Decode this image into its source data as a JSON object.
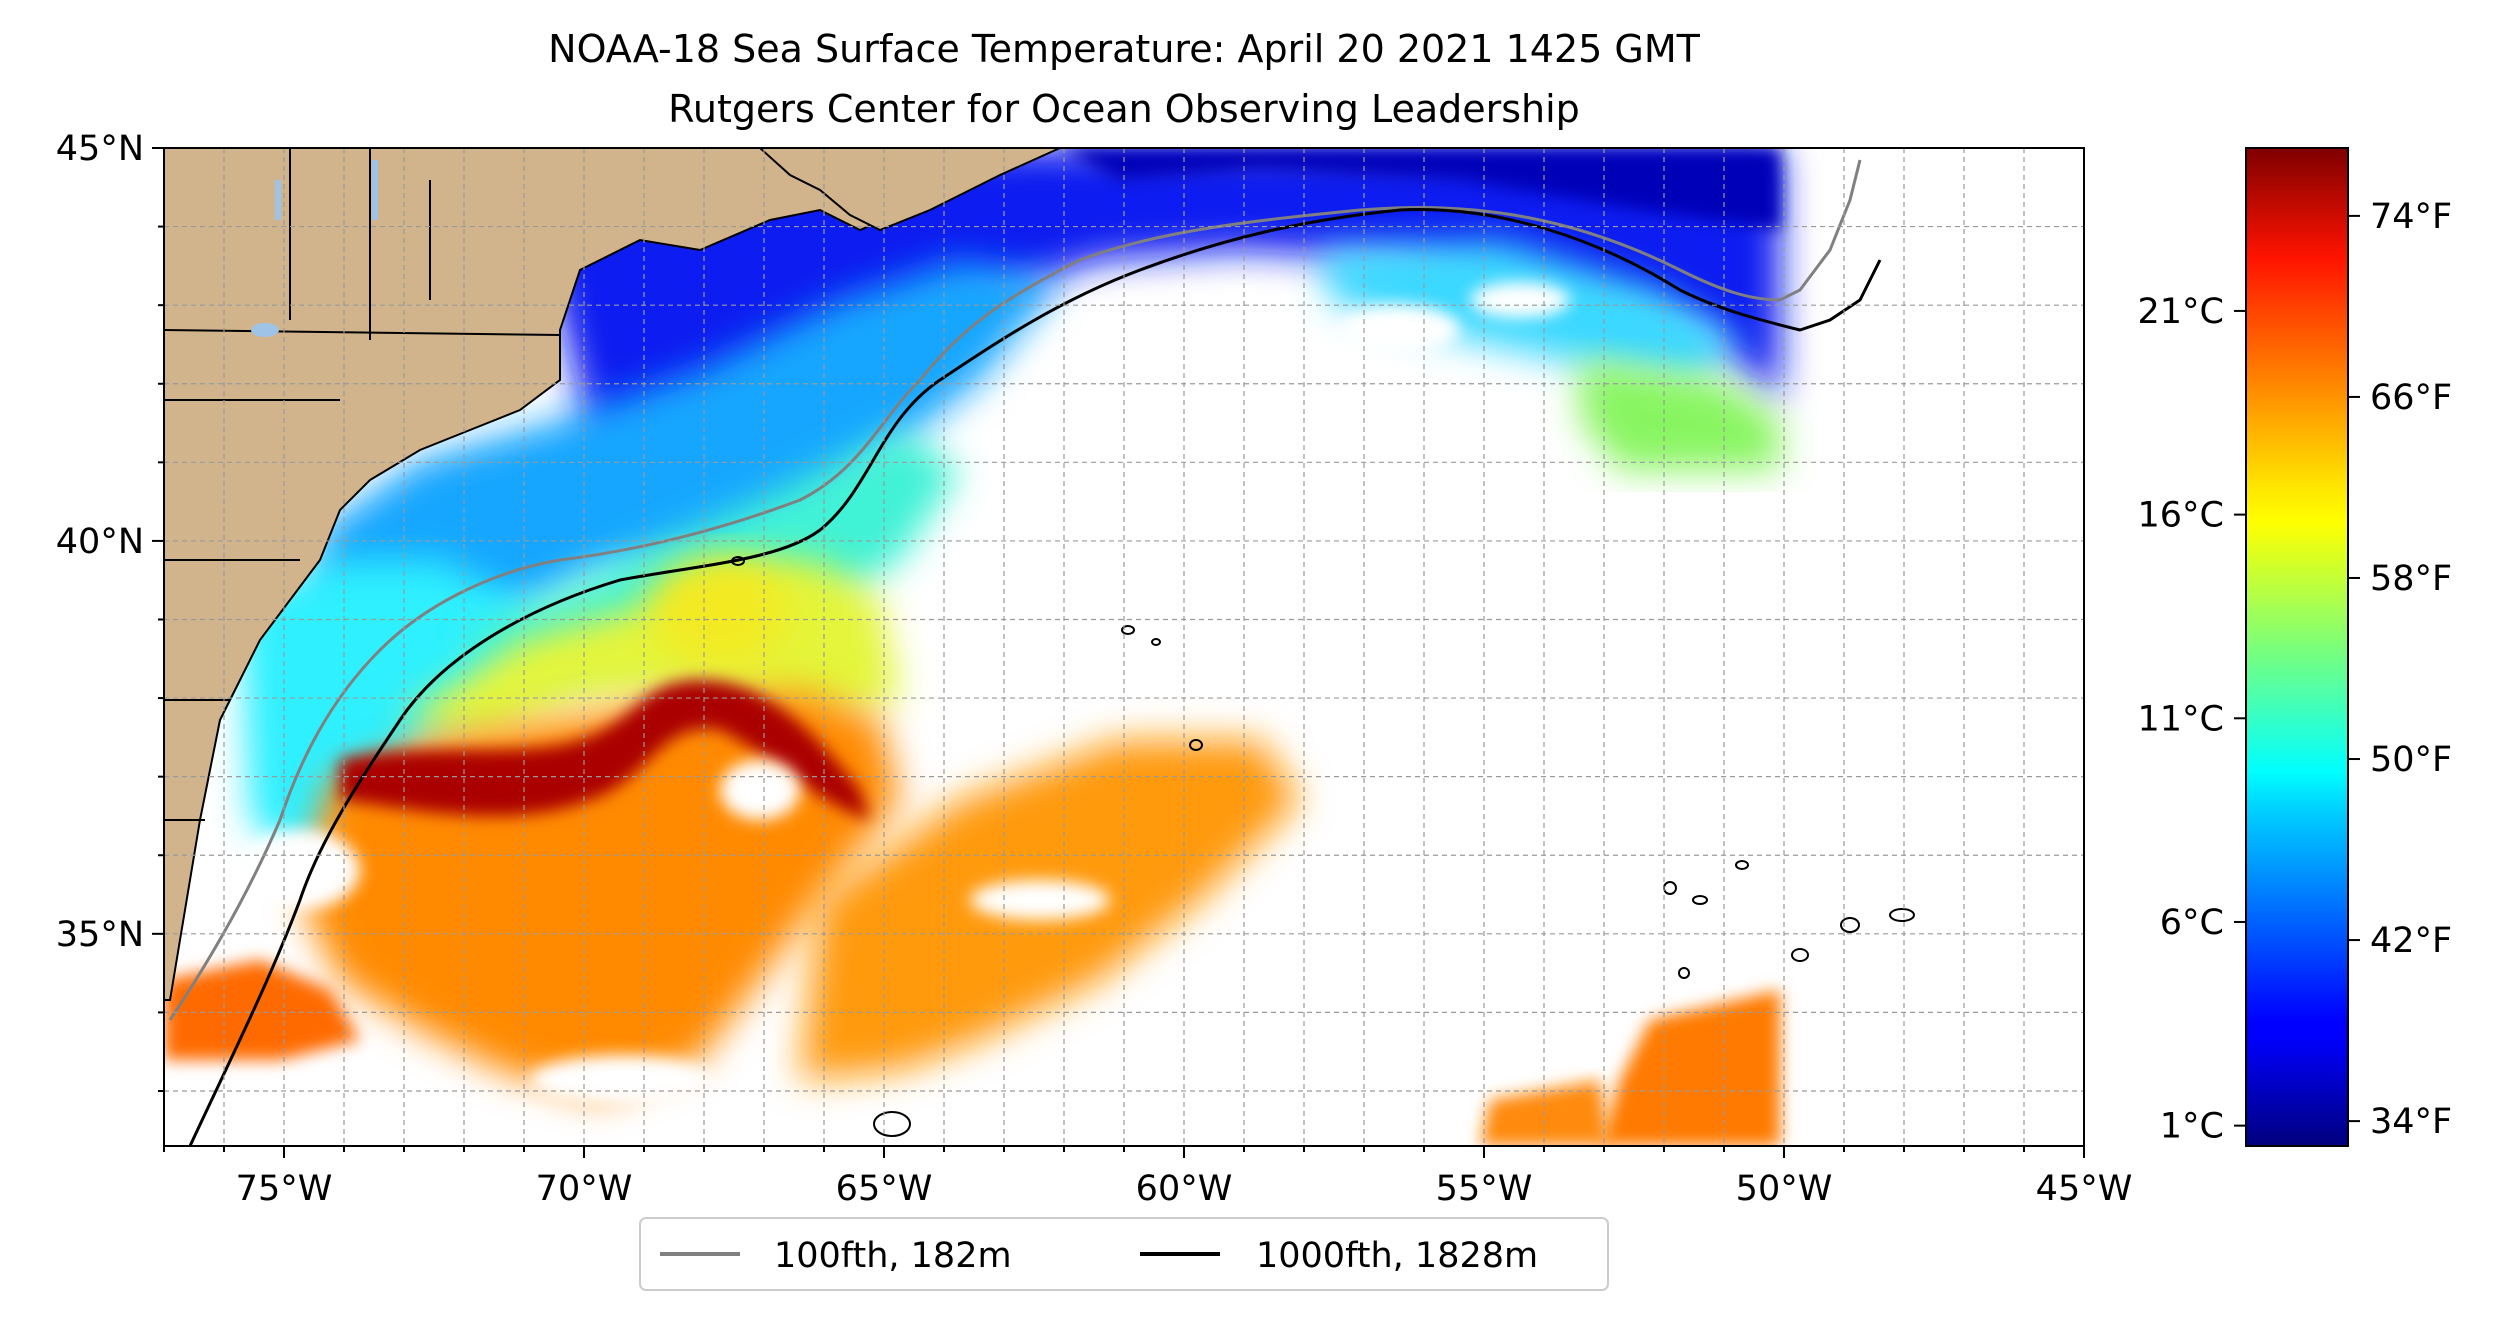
{
  "title": {
    "line1": "NOAA-18 Sea Surface Temperature: April 20 2021 1425 GMT",
    "line2": "Rutgers Center for Ocean Observing Leadership"
  },
  "map": {
    "lon_range": [
      -77,
      -45
    ],
    "lat_range": [
      32.3,
      45
    ],
    "x_ticks": [
      {
        "lon": -75,
        "label": "75°W"
      },
      {
        "lon": -70,
        "label": "70°W"
      },
      {
        "lon": -65,
        "label": "65°W"
      },
      {
        "lon": -60,
        "label": "60°W"
      },
      {
        "lon": -55,
        "label": "55°W"
      },
      {
        "lon": -50,
        "label": "50°W"
      },
      {
        "lon": -45,
        "label": "45°W"
      }
    ],
    "y_ticks": [
      {
        "lat": 35,
        "label": "35°N"
      },
      {
        "lat": 40,
        "label": "40°N"
      },
      {
        "lat": 45,
        "label": "45°N"
      }
    ],
    "grid": true,
    "grid_step_deg": 1,
    "colors": {
      "land": "#d2b48c",
      "lakes": "#9ec3e6",
      "isobath_100fth": "#808080",
      "isobath_1000fth": "#000000",
      "no_data": "#ffffff"
    }
  },
  "colorbar": {
    "colormap": "jet",
    "temp_c_range": [
      0.5,
      25
    ],
    "celsius_ticks": [
      {
        "value": 1,
        "label": "1°C"
      },
      {
        "value": 6,
        "label": "6°C"
      },
      {
        "value": 11,
        "label": "11°C"
      },
      {
        "value": 16,
        "label": "16°C"
      },
      {
        "value": 21,
        "label": "21°C"
      }
    ],
    "fahrenheit_ticks": [
      {
        "value": 34,
        "label": "34°F"
      },
      {
        "value": 42,
        "label": "42°F"
      },
      {
        "value": 50,
        "label": "50°F"
      },
      {
        "value": 58,
        "label": "58°F"
      },
      {
        "value": 66,
        "label": "66°F"
      },
      {
        "value": 74,
        "label": "74°F"
      }
    ]
  },
  "legend": {
    "items": [
      {
        "label": "100fth, 182m",
        "color": "#808080"
      },
      {
        "label": "1000fth, 1828m",
        "color": "#000000"
      }
    ]
  }
}
